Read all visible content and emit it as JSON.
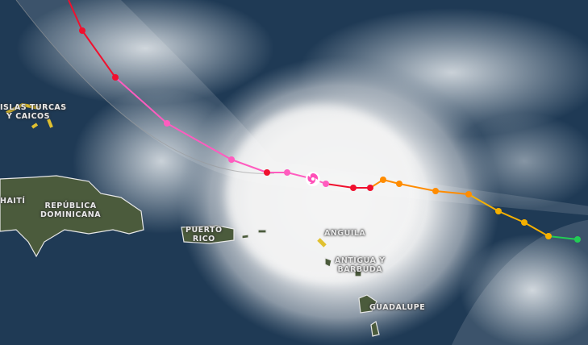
{
  "labels": {
    "turks_caicos": "ISLAS TURCAS\nY CAICOS",
    "haiti": "HAITÍ",
    "dominican_republic": "REPÚBLICA\nDOMINICANA",
    "puerto_rico": "PUERTO\nRICO",
    "anguilla": "ANGUILA",
    "antigua_barbuda": "ANTIGUA Y\nBARBUDA",
    "guadeloupe": "GUADALUPE"
  },
  "storm_icon": "hurricane-icon",
  "colors": {
    "ocean": "#1d3550",
    "land": "#4a5a3a",
    "cloud": "#f2f2f2",
    "track_red": "#f0102e",
    "track_pink": "#ff5cbf",
    "track_orange": "#ff8c00",
    "track_amber": "#f5b000",
    "track_green": "#22cc55",
    "cone": "#ffffff"
  }
}
